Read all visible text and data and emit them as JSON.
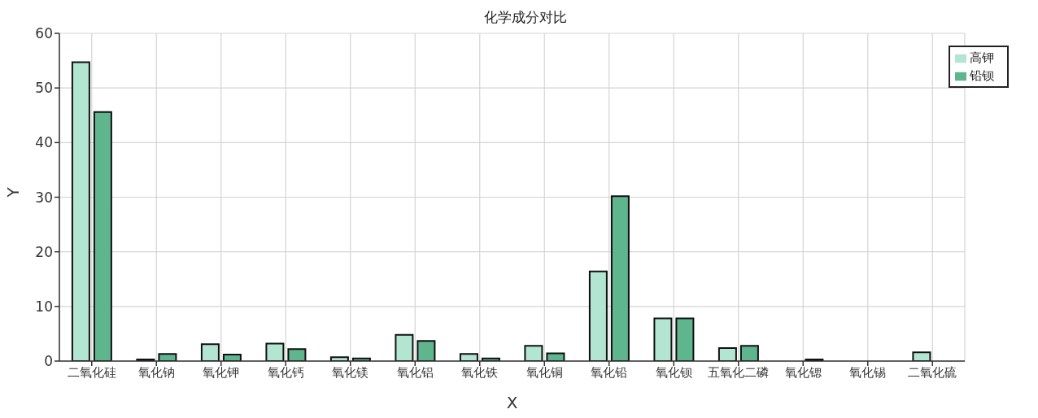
{
  "chart_data": {
    "type": "bar",
    "title": "化学成分对比",
    "xlabel": "X",
    "ylabel": "Y",
    "categories": [
      "二氧化硅",
      "氧化钠",
      "氧化钾",
      "氧化钙",
      "氧化镁",
      "氧化铝",
      "氧化铁",
      "氧化铜",
      "氧化铅",
      "氧化钡",
      "五氧化二磷",
      "氧化锶",
      "氧化锡",
      "二氧化硫"
    ],
    "series": [
      {
        "name": "高钾",
        "color": "#b3e6d2",
        "values": [
          54.7,
          0.3,
          3.1,
          3.2,
          0.7,
          4.8,
          1.3,
          2.8,
          16.4,
          7.8,
          2.4,
          null,
          0,
          1.6
        ]
      },
      {
        "name": "铅钡",
        "color": "#5fb58e",
        "values": [
          45.6,
          1.3,
          1.2,
          2.2,
          0.5,
          3.7,
          0.5,
          1.4,
          30.2,
          7.8,
          2.8,
          0.3,
          0,
          0
        ]
      }
    ],
    "ylim": [
      0,
      60
    ],
    "yticks": [
      0,
      10,
      20,
      30,
      40,
      50,
      60
    ],
    "grid": true,
    "legend": "top right"
  }
}
